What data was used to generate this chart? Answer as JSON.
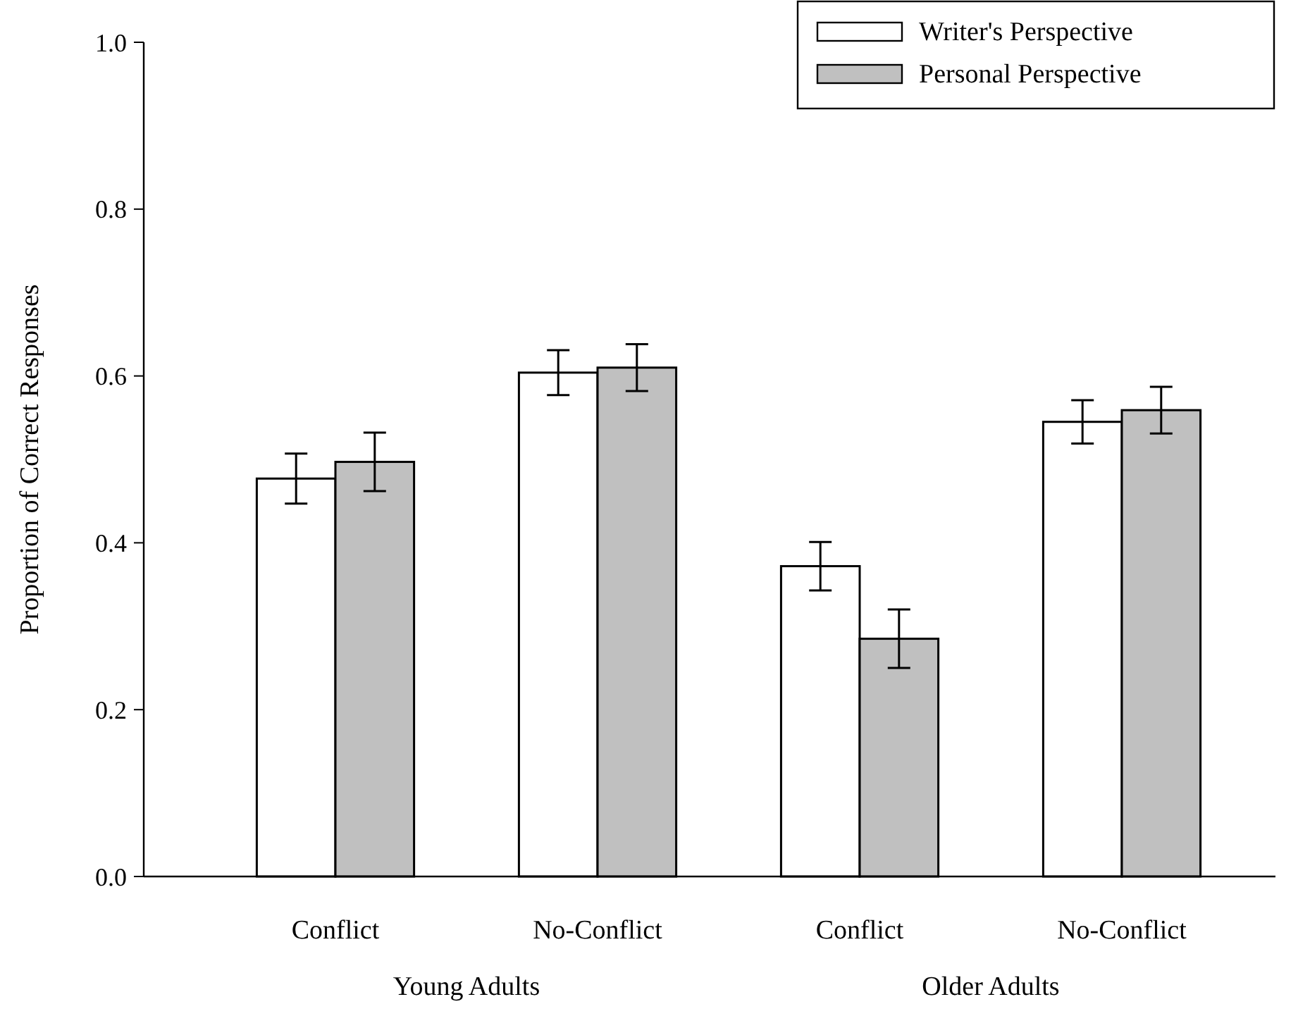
{
  "chart_data": {
    "type": "bar",
    "ylabel": "Proportion of Correct Responses",
    "categories": [
      "Conflict",
      "No-Conflict",
      "Conflict",
      "No-Conflict"
    ],
    "series": [
      {
        "name": "Writer's Perspective",
        "color": "#ffffff",
        "values": [
          0.477,
          0.604,
          0.372,
          0.545
        ],
        "errors": [
          0.03,
          0.027,
          0.029,
          0.026
        ]
      },
      {
        "name": "Personal Perspective",
        "color": "#c0c0c0",
        "values": [
          0.497,
          0.61,
          0.285,
          0.559
        ],
        "errors": [
          0.035,
          0.028,
          0.035,
          0.028
        ]
      }
    ],
    "ylim": [
      0,
      1
    ],
    "yticks": [
      {
        "value": 0,
        "label": "0.0"
      },
      0.2,
      0.4,
      0.6,
      0.8,
      {
        "value": 1,
        "label": "1.0"
      }
    ],
    "annotations": [
      "Young Adults",
      "Older Adults"
    ],
    "legend": "top right",
    "grid": false
  }
}
